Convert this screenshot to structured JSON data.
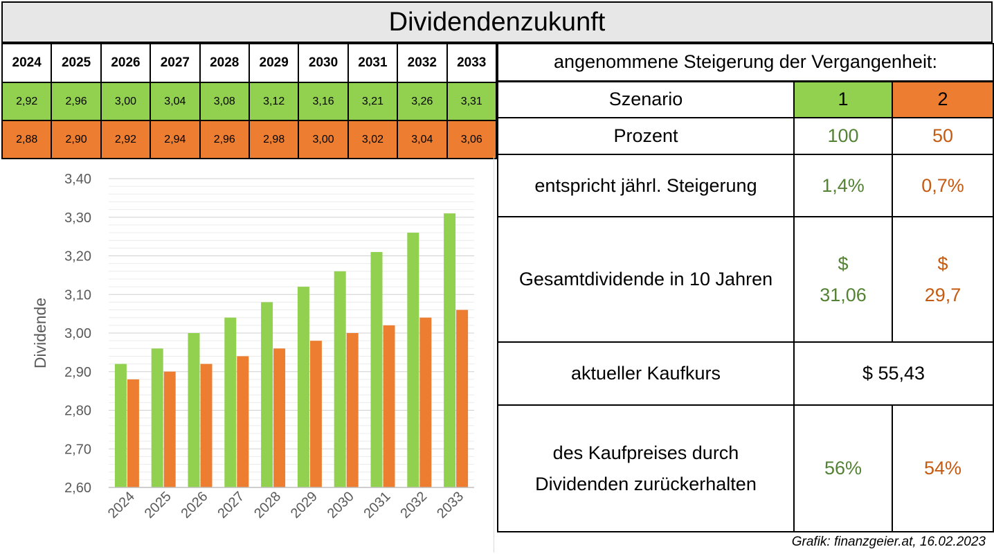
{
  "title": "Dividendenzukunft",
  "year_table": {
    "years": [
      "2024",
      "2025",
      "2026",
      "2027",
      "2028",
      "2029",
      "2030",
      "2031",
      "2032",
      "2033"
    ],
    "scenario1": [
      "2,92",
      "2,96",
      "3,00",
      "3,04",
      "3,08",
      "3,12",
      "3,16",
      "3,21",
      "3,26",
      "3,31"
    ],
    "scenario2": [
      "2,88",
      "2,90",
      "2,92",
      "2,94",
      "2,96",
      "2,98",
      "3,00",
      "3,02",
      "3,04",
      "3,06"
    ]
  },
  "info": {
    "heading": "angenommene Steigerung der Vergangenheit:",
    "szenario_label": "Szenario",
    "szenario_1": "1",
    "szenario_2": "2",
    "prozent_label": "Prozent",
    "prozent_1": "100",
    "prozent_2": "50",
    "steigerung_label": "entspricht jährl. Steigerung",
    "steigerung_1": "1,4%",
    "steigerung_2": "0,7%",
    "gesamt_label": "Gesamtdividende in 10 Jahren",
    "gesamt_1_currency": "$",
    "gesamt_1_value": "31,06",
    "gesamt_2_currency": "$",
    "gesamt_2_value": "29,7",
    "kaufkurs_label": "aktueller Kaufkurs",
    "kaufkurs_value": "$ 55,43",
    "kaufpreis_label": "des Kaufpreises durch Dividenden zurückerhalten",
    "kaufpreis_1": "56%",
    "kaufpreis_2": "54%"
  },
  "credit": "Grafik: finanzgeier.at, 16.02.2023",
  "colors": {
    "scenario1": "#92d050",
    "scenario2": "#ed7d31",
    "text_green": "#548235",
    "text_orange": "#c55a11"
  },
  "chart_data": {
    "type": "bar",
    "categories": [
      "2024",
      "2025",
      "2026",
      "2027",
      "2028",
      "2029",
      "2030",
      "2031",
      "2032",
      "2033"
    ],
    "series": [
      {
        "values": [
          2.92,
          2.96,
          3.0,
          3.04,
          3.08,
          3.12,
          3.16,
          3.21,
          3.26,
          3.31
        ]
      },
      {
        "values": [
          2.88,
          2.9,
          2.92,
          2.94,
          2.96,
          2.98,
          3.0,
          3.02,
          3.04,
          3.06
        ]
      }
    ],
    "ylabel": "Dividende",
    "ylim": [
      2.6,
      3.4
    ],
    "yticks": [
      "2,60",
      "2,70",
      "2,80",
      "2,90",
      "3,00",
      "3,10",
      "3,20",
      "3,30",
      "3,40"
    ],
    "grid": true,
    "legend": "none"
  }
}
